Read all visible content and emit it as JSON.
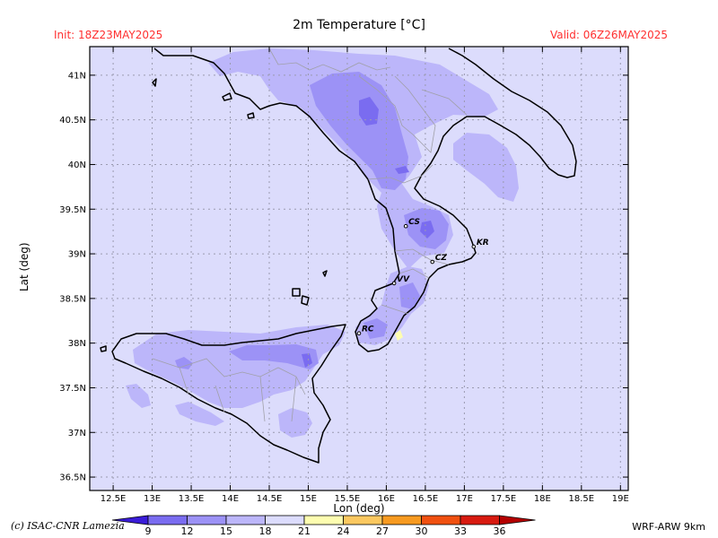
{
  "title": "2m Temperature [°C]",
  "init_label": "Init: 18Z23MAY2025",
  "valid_label": "Valid: 06Z26MAY2025",
  "axes": {
    "xlabel": "Lon (deg)",
    "ylabel": "Lat (deg)",
    "lon_ticks": [
      "12.5E",
      "13E",
      "13.5E",
      "14E",
      "14.5E",
      "15E",
      "15.5E",
      "16E",
      "16.5E",
      "17E",
      "17.5E",
      "18E",
      "18.5E",
      "19E"
    ],
    "lat_ticks": [
      "41N",
      "40.5N",
      "40N",
      "39.5N",
      "39N",
      "38.5N",
      "38N",
      "37.5N",
      "37N",
      "36.5N"
    ],
    "lon_range": [
      12.2,
      19.1
    ],
    "lat_range": [
      36.35,
      41.32
    ],
    "grid": true
  },
  "cities": [
    {
      "code": "CS",
      "lon": 16.25,
      "lat": 39.31
    },
    {
      "code": "KR",
      "lon": 17.12,
      "lat": 39.08
    },
    {
      "code": "CZ",
      "lon": 16.59,
      "lat": 38.91
    },
    {
      "code": "VV",
      "lon": 16.1,
      "lat": 38.67
    },
    {
      "code": "RC",
      "lon": 15.65,
      "lat": 38.11
    }
  ],
  "colorbar": {
    "labels": [
      "9",
      "12",
      "15",
      "18",
      "21",
      "24",
      "27",
      "30",
      "33",
      "36"
    ],
    "colors": [
      "#3a1cd8",
      "#7a6cf0",
      "#9c92f6",
      "#bcb6fa",
      "#dcdcfd",
      "#fdfdb0",
      "#fbc860",
      "#f79a20",
      "#f05010",
      "#d81a10",
      "#b40000"
    ]
  },
  "background_color": "#dcdcfc",
  "copyright": "(c) ISAC-CNR Lamezia",
  "model_label": "WRF-ARW 9km"
}
